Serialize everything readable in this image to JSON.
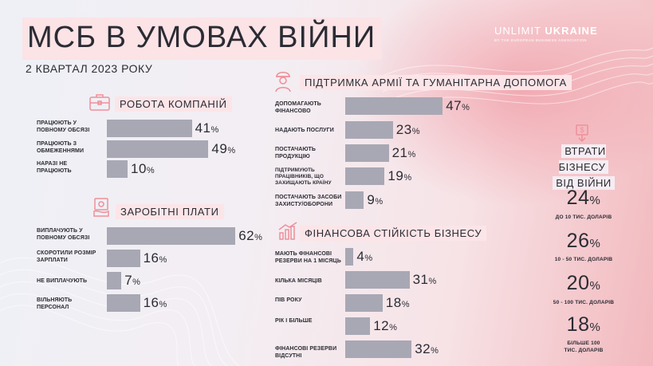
{
  "title": "МСБ В УМОВАХ ВІЙНИ",
  "subtitle": "2 КВАРТАЛ 2023 РОКУ",
  "brand": {
    "part1": "UNLIMIT ",
    "part2": "UKRAINE",
    "tagline": "BY THE EUROPEAN BUSINESS ASSOCIATION"
  },
  "colors": {
    "bar": "#a8a8b4",
    "accent": "#ef8f99"
  },
  "sections": {
    "work": {
      "title": "РОБОТА КОМПАНІЙ",
      "icon": "briefcase-icon",
      "items": [
        {
          "label": "ПРАЦЮЮТЬ У ПОВНОМУ ОБСЯЗІ",
          "value": 41
        },
        {
          "label": "ПРАЦЮЮТЬ З ОБМЕЖЕННЯМИ",
          "value": 49
        },
        {
          "label": "НАРАЗІ НЕ ПРАЦЮЮТЬ",
          "value": 10
        }
      ]
    },
    "salary": {
      "title": "ЗАРОБІТНІ ПЛАТИ",
      "icon": "money-icon",
      "items": [
        {
          "label": "ВИПЛАЧУЮТЬ У ПОВНОМУ ОБСЯЗІ",
          "value": 62
        },
        {
          "label": "СКОРОТИЛИ РОЗМІР ЗАРПЛАТИ",
          "value": 16
        },
        {
          "label": "НЕ ВИПЛАЧУЮТЬ",
          "value": 7
        },
        {
          "label": "ВІЛЬНЯЮТЬ ПЕРСОНАЛ",
          "value": 16
        }
      ]
    },
    "army": {
      "title": "ПІДТРИМКА АРМІЇ ТА ГУМАНІТАРНА ДОПОМОГА",
      "icon": "soldier-icon",
      "items": [
        {
          "label": "ДОПОМАГАЮТЬ ФІНАНСОВО",
          "value": 47
        },
        {
          "label": "НАДАЮТЬ ПОСЛУГИ",
          "value": 23
        },
        {
          "label": "ПОСТАЧАЮТЬ ПРОДУКЦІЮ",
          "value": 21
        },
        {
          "label": "ПІДТРИМУЮТЬ ПРАЦІВНИКІВ, ЩО ЗАХИЩАЮТЬ КРАЇНУ",
          "value": 19
        },
        {
          "label": "ПОСТАЧАЮТЬ ЗАСОБИ ЗАХИСТУ/ОБОРОНИ",
          "value": 9
        }
      ]
    },
    "finance": {
      "title": "ФІНАНСОВА СТІЙКІСТЬ БІЗНЕСУ",
      "icon": "growth-icon",
      "items": [
        {
          "label": "МАЮТЬ ФІНАНСОВІ РЕЗЕРВИ НА 1 МІСЯЦЬ",
          "value": 4
        },
        {
          "label": "КІЛЬКА МІСЯЦІВ",
          "value": 31
        },
        {
          "label": "ПІВ РОКУ",
          "value": 18
        },
        {
          "label": "РІК І БІЛЬШЕ",
          "value": 12
        },
        {
          "label": "ФІНАНСОВІ РЕЗЕРВИ ВІДСУТНІ",
          "value": 32
        }
      ]
    },
    "losses": {
      "title_line1": "ВТРАТИ БІЗНЕСУ",
      "title_line2": "ВІД ВІЙНИ",
      "icon": "dollar-down-icon",
      "items": [
        {
          "label": "ДО 10 ТИС. ДОЛАРІВ",
          "value": 24
        },
        {
          "label": "10 - 50 ТИС. ДОЛАРІВ",
          "value": 26
        },
        {
          "label": "50 - 100 ТИС. ДОЛАРІВ",
          "value": 20
        },
        {
          "label": "БІЛЬШЕ 100 ТИС. ДОЛАРІВ",
          "value": 18
        }
      ]
    }
  },
  "chart_data": [
    {
      "type": "bar",
      "title": "РОБОТА КОМПАНІЙ",
      "categories": [
        "ПРАЦЮЮТЬ У ПОВНОМУ ОБСЯЗІ",
        "ПРАЦЮЮТЬ З ОБМЕЖЕННЯМИ",
        "НАРАЗІ НЕ ПРАЦЮЮТЬ"
      ],
      "values": [
        41,
        49,
        10
      ],
      "unit": "%"
    },
    {
      "type": "bar",
      "title": "ЗАРОБІТНІ ПЛАТИ",
      "categories": [
        "ВИПЛАЧУЮТЬ У ПОВНОМУ ОБСЯЗІ",
        "СКОРОТИЛИ РОЗМІР ЗАРПЛАТИ",
        "НЕ ВИПЛАЧУЮТЬ",
        "ВІЛЬНЯЮТЬ ПЕРСОНАЛ"
      ],
      "values": [
        62,
        16,
        7,
        16
      ],
      "unit": "%"
    },
    {
      "type": "bar",
      "title": "ПІДТРИМКА АРМІЇ ТА ГУМАНІТАРНА ДОПОМОГА",
      "categories": [
        "ДОПОМАГАЮТЬ ФІНАНСОВО",
        "НАДАЮТЬ ПОСЛУГИ",
        "ПОСТАЧАЮТЬ ПРОДУКЦІЮ",
        "ПІДТРИМУЮТЬ ПРАЦІВНИКІВ, ЩО ЗАХИЩАЮТЬ КРАЇНУ",
        "ПОСТАЧАЮТЬ ЗАСОБИ ЗАХИСТУ/ОБОРОНИ"
      ],
      "values": [
        47,
        23,
        21,
        19,
        9
      ],
      "unit": "%"
    },
    {
      "type": "bar",
      "title": "ФІНАНСОВА СТІЙКІСТЬ БІЗНЕСУ",
      "categories": [
        "МАЮТЬ ФІНАНСОВІ РЕЗЕРВИ НА 1 МІСЯЦЬ",
        "КІЛЬКА МІСЯЦІВ",
        "ПІВ РОКУ",
        "РІК І БІЛЬШЕ",
        "ФІНАНСОВІ РЕЗЕРВИ ВІДСУТНІ"
      ],
      "values": [
        4,
        31,
        18,
        12,
        32
      ],
      "unit": "%"
    },
    {
      "type": "table",
      "title": "ВТРАТИ БІЗНЕСУ ВІД ВІЙНИ",
      "categories": [
        "ДО 10 ТИС. ДОЛАРІВ",
        "10 - 50 ТИС. ДОЛАРІВ",
        "50 - 100 ТИС. ДОЛАРІВ",
        "БІЛЬШЕ 100 ТИС. ДОЛАРІВ"
      ],
      "values": [
        24,
        26,
        20,
        18
      ],
      "unit": "%"
    }
  ]
}
